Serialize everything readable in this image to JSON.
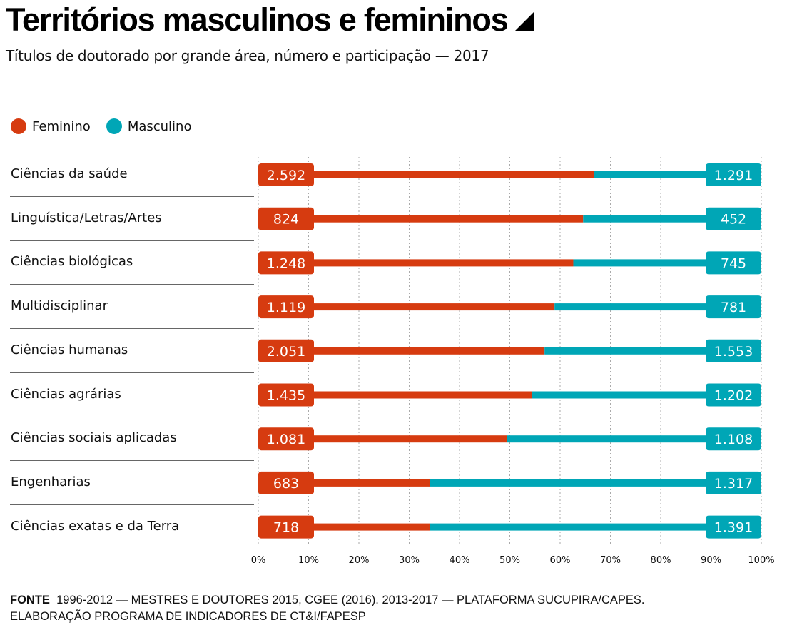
{
  "header": {
    "title": "Territórios masculinos e femininos",
    "title_icon": "triangle-corner-icon",
    "subtitle": "Títulos de doutorado por grande área, número e participação — 2017"
  },
  "colors": {
    "feminino": "#d63b10",
    "masculino": "#00a6b6",
    "grid": "#aaaaaa"
  },
  "chart_data": {
    "type": "bar",
    "orientation": "horizontal",
    "stacked": true,
    "normalized": true,
    "title": "Territórios masculinos e femininos",
    "subtitle": "Títulos de doutorado por grande área, número e participação — 2017",
    "xlabel": "",
    "ylabel": "",
    "xlim": [
      0,
      100
    ],
    "grid": true,
    "legend_position": "top-left",
    "legend": [
      "Feminino",
      "Masculino"
    ],
    "x_ticks": [
      "0%",
      "10%",
      "20%",
      "30%",
      "40%",
      "50%",
      "60%",
      "70%",
      "80%",
      "90%",
      "100%"
    ],
    "categories": [
      "Ciências da saúde",
      "Linguística/Letras/Artes",
      "Ciências biológicas",
      "Multidisciplinar",
      "Ciências humanas",
      "Ciências agrárias",
      "Ciências sociais aplicadas",
      "Engenharias",
      "Ciências exatas e da Terra"
    ],
    "series": [
      {
        "name": "Feminino",
        "values": [
          2592,
          824,
          1248,
          1119,
          2051,
          1435,
          1081,
          683,
          718
        ],
        "labels": [
          "2.592",
          "824",
          "1.248",
          "1.119",
          "2.051",
          "1.435",
          "1.081",
          "683",
          "718"
        ]
      },
      {
        "name": "Masculino",
        "values": [
          1291,
          452,
          745,
          781,
          1553,
          1202,
          1108,
          1317,
          1391
        ],
        "labels": [
          "1.291",
          "452",
          "745",
          "781",
          "1.553",
          "1.202",
          "1.108",
          "1.317",
          "1.391"
        ]
      }
    ]
  },
  "footer": {
    "source_label": "FONTE",
    "source_text": "1996-2012 — MESTRES E DOUTORES 2015, CGEE (2016). 2013-2017 — PLATAFORMA SUCUPIRA/CAPES.",
    "line2": "ELABORAÇÃO PROGRAMA DE INDICADORES DE CT&I/FAPESP"
  }
}
